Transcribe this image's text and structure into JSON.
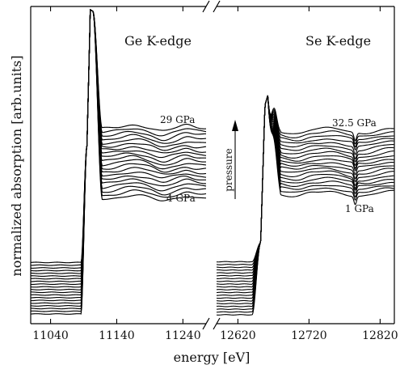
{
  "chart_data": {
    "type": "line",
    "title": "",
    "xlabel": "energy [eV]",
    "ylabel": "normalized absorption [arb.units]",
    "axis_break": true,
    "grid": false,
    "annotation": {
      "text": "pressure",
      "direction": "up"
    },
    "panels": [
      {
        "title": "Ge K-edge",
        "xlim": [
          11010,
          11275
        ],
        "xticks": [
          11040,
          11140,
          11240
        ],
        "xtick_labels": [
          "11040",
          "11140",
          "11240"
        ],
        "edge_energy": 11103,
        "curve_count": 20,
        "pressure_range_labels": {
          "top": "29 GPa",
          "bottom": "4 GPa"
        },
        "pressure_values_gpa": [
          4,
          29
        ]
      },
      {
        "title": "Se K-edge",
        "xlim": [
          12590,
          12840
        ],
        "xticks": [
          12620,
          12720,
          12820
        ],
        "xtick_labels": [
          "12620",
          "12720",
          "12820"
        ],
        "edge_energy": 12658,
        "curve_count": 20,
        "pressure_range_labels": {
          "top": "32.5 GPa",
          "bottom": "1 GPa"
        },
        "pressure_values_gpa": [
          1,
          32.5
        ]
      }
    ]
  }
}
